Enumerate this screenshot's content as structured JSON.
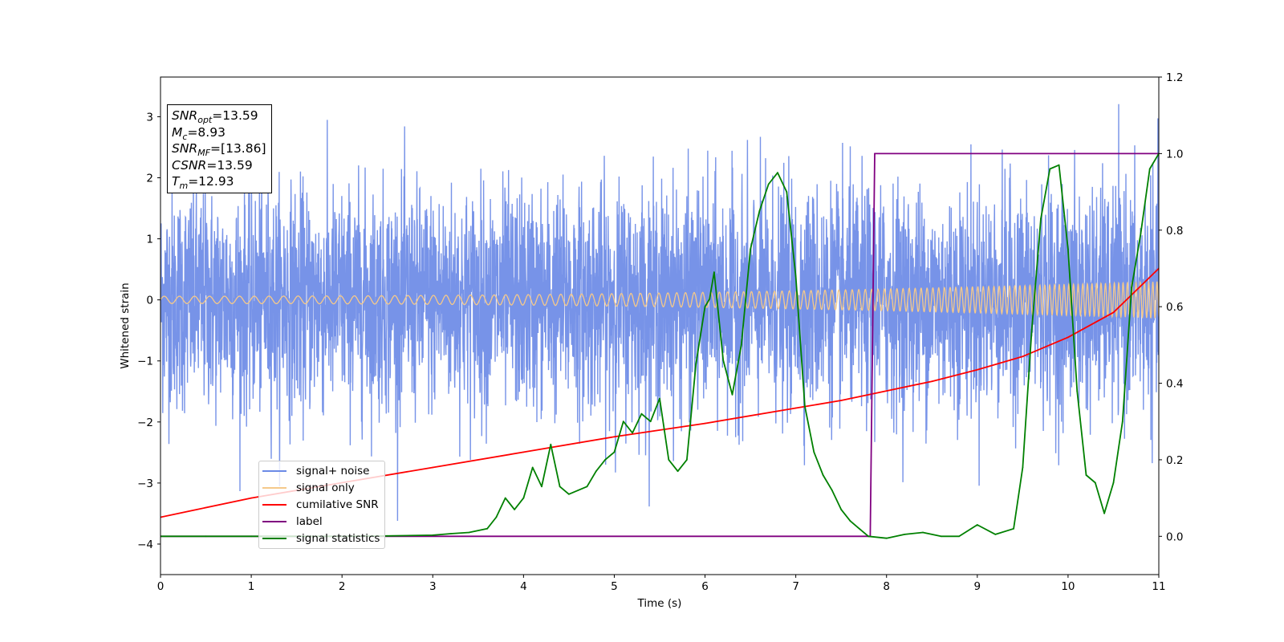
{
  "chart_data": {
    "type": "line",
    "xlabel": "Time (s)",
    "ylabel": "Whitened strain",
    "xlim": [
      0,
      11
    ],
    "ylim_left": [
      -4.5,
      3.65
    ],
    "ylim_right": [
      -0.1,
      1.2
    ],
    "x_ticks": [
      "0",
      "1",
      "2",
      "3",
      "4",
      "5",
      "6",
      "7",
      "8",
      "9",
      "10",
      "11"
    ],
    "y_left_ticks": [
      "3",
      "2",
      "1",
      "0",
      "−1",
      "−2",
      "−3",
      "−4"
    ],
    "y_right_ticks": [
      "1.2",
      "1.0",
      "0.8",
      "0.6",
      "0.4",
      "0.2",
      "0.0"
    ],
    "grid": false,
    "legend_position": "lower-left",
    "annotation": {
      "snr_opt": {
        "sym": "SNR",
        "sub": "opt",
        "value": "=13.59"
      },
      "mc": {
        "sym": "M",
        "sub": "c",
        "value": "=8.93"
      },
      "snr_mf": {
        "sym": "SNR",
        "sub": "MF",
        "value": "=[13.86]"
      },
      "csnr": {
        "sym": "CSNR",
        "sub": "",
        "value": "=13.59"
      },
      "tm": {
        "sym": "T",
        "sub": "m",
        "value": "=12.93"
      }
    },
    "series": [
      {
        "name": "signal+ noise",
        "color": "#6b8ae6",
        "axis": "left",
        "sample_rate": 400,
        "std": 0.9,
        "range": [
          -4.15,
          3.3
        ]
      },
      {
        "name": "signal only",
        "color": "#f5c98a",
        "axis": "left",
        "amplitude_start": 0.06,
        "amplitude_end": 0.3,
        "freq_start": 6,
        "freq_end": 22
      },
      {
        "name": "cumilative SNR",
        "color": "#ff0000",
        "axis": "right",
        "x": [
          0,
          1,
          2,
          3,
          4,
          5,
          6,
          7,
          7.5,
          8,
          8.5,
          9,
          9.5,
          10,
          10.5,
          11
        ],
        "y": [
          0.05,
          0.1,
          0.14,
          0.18,
          0.22,
          0.26,
          0.295,
          0.335,
          0.355,
          0.38,
          0.405,
          0.435,
          0.47,
          0.52,
          0.585,
          0.7
        ]
      },
      {
        "name": "label",
        "color": "#800080",
        "axis": "right",
        "x": [
          0,
          7.82,
          7.87,
          11
        ],
        "y": [
          0.0,
          0.0,
          1.0,
          1.0
        ]
      },
      {
        "name": "signal statistics",
        "color": "#008000",
        "axis": "right",
        "x": [
          0,
          0.5,
          1,
          1.5,
          2,
          2.5,
          3,
          3.2,
          3.4,
          3.6,
          3.7,
          3.8,
          3.9,
          4.0,
          4.1,
          4.2,
          4.3,
          4.4,
          4.5,
          4.6,
          4.7,
          4.8,
          4.9,
          5.0,
          5.1,
          5.2,
          5.3,
          5.4,
          5.5,
          5.6,
          5.7,
          5.8,
          5.9,
          6.0,
          6.05,
          6.1,
          6.2,
          6.3,
          6.4,
          6.5,
          6.6,
          6.7,
          6.8,
          6.9,
          7.0,
          7.1,
          7.2,
          7.3,
          7.4,
          7.5,
          7.6,
          7.7,
          7.8,
          8.0,
          8.2,
          8.4,
          8.6,
          8.8,
          9.0,
          9.2,
          9.4,
          9.5,
          9.6,
          9.7,
          9.8,
          9.9,
          10.0,
          10.1,
          10.2,
          10.3,
          10.4,
          10.5,
          10.6,
          10.7,
          10.8,
          10.9,
          11.0
        ],
        "y": [
          0.0,
          0.0,
          0.0,
          0.0,
          0.0,
          0.001,
          0.003,
          0.007,
          0.01,
          0.02,
          0.05,
          0.1,
          0.07,
          0.1,
          0.18,
          0.13,
          0.24,
          0.13,
          0.11,
          0.12,
          0.13,
          0.17,
          0.2,
          0.22,
          0.3,
          0.27,
          0.32,
          0.3,
          0.36,
          0.2,
          0.17,
          0.2,
          0.45,
          0.6,
          0.62,
          0.69,
          0.46,
          0.37,
          0.5,
          0.75,
          0.85,
          0.92,
          0.95,
          0.9,
          0.68,
          0.34,
          0.22,
          0.16,
          0.12,
          0.07,
          0.04,
          0.02,
          0.0,
          -0.005,
          0.005,
          0.01,
          0.0,
          0.0,
          0.03,
          0.005,
          0.02,
          0.18,
          0.54,
          0.83,
          0.96,
          0.97,
          0.75,
          0.38,
          0.16,
          0.14,
          0.06,
          0.14,
          0.3,
          0.65,
          0.79,
          0.96,
          1.0
        ]
      }
    ]
  }
}
